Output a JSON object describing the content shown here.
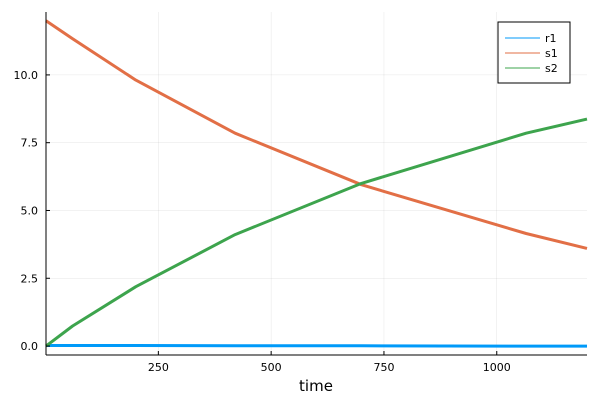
{
  "chart_data": {
    "type": "line",
    "title": "",
    "xlabel": "time",
    "ylabel": "",
    "xlim": [
      1,
      1200
    ],
    "ylim": [
      -0.33,
      12.32
    ],
    "xticks": [
      250,
      500,
      750,
      1000
    ],
    "xtick_labels": [
      "250",
      "500",
      "750",
      "1000"
    ],
    "yticks": [
      0,
      2.5,
      5,
      7.5,
      10
    ],
    "ytick_labels": [
      "0.0",
      "2.5",
      "5.0",
      "7.5",
      "10.0"
    ],
    "grid": true,
    "legend_position": "top-right",
    "series": [
      {
        "name": "r1",
        "color": "#009af9",
        "x": [
          1,
          60,
          200,
          420,
          700,
          1065,
          1200
        ],
        "y": [
          0.02,
          0.02,
          0.02,
          0.01,
          0.01,
          0.0,
          0.0
        ]
      },
      {
        "name": "s1",
        "color": "#e26f46",
        "x": [
          1,
          60,
          200,
          420,
          700,
          1065,
          1200
        ],
        "y": [
          12.0,
          11.33,
          9.81,
          7.85,
          5.95,
          4.15,
          3.6
        ]
      },
      {
        "name": "s2",
        "color": "#3da44d",
        "x": [
          1,
          60,
          200,
          420,
          700,
          1065,
          1200
        ],
        "y": [
          0.0,
          0.74,
          2.19,
          4.11,
          6.0,
          7.85,
          8.37
        ]
      }
    ]
  }
}
